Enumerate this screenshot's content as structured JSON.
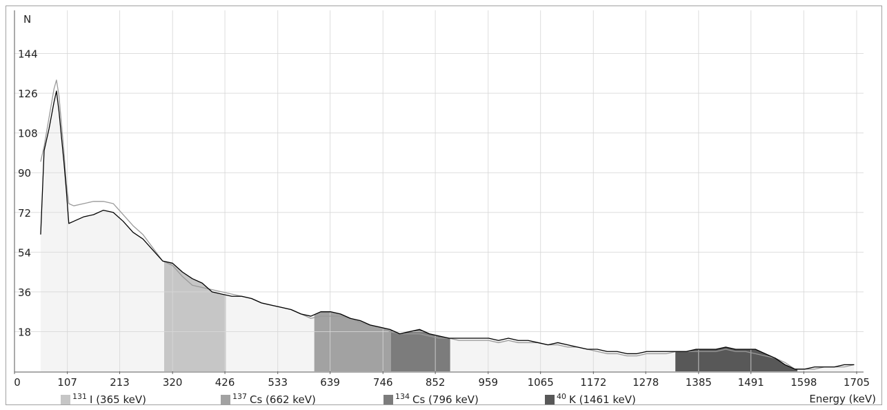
{
  "chart_data": {
    "type": "line",
    "y_label": "N",
    "x_label": "Energy (keV)",
    "xlim": [
      0,
      1705
    ],
    "ylim": [
      0,
      162
    ],
    "xticks": [
      0,
      107,
      213,
      320,
      426,
      533,
      639,
      746,
      852,
      959,
      1065,
      1172,
      1278,
      1385,
      1491,
      1598,
      1705
    ],
    "yticks": [
      18,
      36,
      54,
      72,
      90,
      108,
      126,
      144
    ],
    "grid": true,
    "fill_color": "#f4f4f4",
    "x": [
      53,
      60,
      70,
      80,
      85,
      90,
      100,
      105,
      110,
      120,
      140,
      160,
      180,
      200,
      220,
      240,
      260,
      280,
      300,
      320,
      340,
      360,
      380,
      400,
      420,
      440,
      460,
      480,
      500,
      520,
      540,
      560,
      580,
      600,
      620,
      640,
      660,
      680,
      700,
      720,
      740,
      760,
      780,
      800,
      820,
      840,
      860,
      880,
      900,
      920,
      940,
      960,
      980,
      1000,
      1020,
      1040,
      1060,
      1080,
      1100,
      1120,
      1140,
      1160,
      1180,
      1200,
      1220,
      1240,
      1260,
      1280,
      1300,
      1320,
      1340,
      1360,
      1380,
      1400,
      1420,
      1440,
      1460,
      1480,
      1500,
      1520,
      1540,
      1560,
      1580,
      1600,
      1620,
      1640,
      1660,
      1680,
      1700
    ],
    "series": [
      {
        "color": "#9a9a9a",
        "values": [
          95,
          102,
          115,
          128,
          132,
          125,
          100,
          85,
          76,
          75,
          76,
          77,
          77,
          76,
          71,
          66,
          62,
          56,
          50,
          48,
          43,
          39,
          38,
          37,
          36,
          35,
          34,
          33,
          31,
          30,
          29,
          28,
          26,
          24,
          25,
          25,
          25,
          24,
          22,
          21,
          20,
          18,
          17,
          17,
          17,
          16,
          15,
          15,
          14,
          14,
          14,
          14,
          13,
          14,
          13,
          13,
          13,
          12,
          12,
          11,
          11,
          10,
          9,
          8,
          8,
          7,
          7,
          8,
          8,
          8,
          9,
          9,
          9,
          9,
          9,
          10,
          9,
          9,
          8,
          7,
          6,
          4,
          1,
          1,
          1,
          2,
          2,
          2,
          3
        ]
      },
      {
        "color": "#000000",
        "values": [
          62,
          100,
          110,
          122,
          127,
          118,
          95,
          82,
          67,
          68,
          70,
          71,
          73,
          72,
          68,
          63,
          60,
          55,
          50,
          49,
          45,
          42,
          40,
          36,
          35,
          34,
          34,
          33,
          31,
          30,
          29,
          28,
          26,
          25,
          27,
          27,
          26,
          24,
          23,
          21,
          20,
          19,
          17,
          18,
          19,
          17,
          16,
          15,
          15,
          15,
          15,
          15,
          14,
          15,
          14,
          14,
          13,
          12,
          13,
          12,
          11,
          10,
          10,
          9,
          9,
          8,
          8,
          9,
          9,
          9,
          9,
          9,
          10,
          10,
          10,
          11,
          10,
          10,
          10,
          8,
          6,
          3,
          1,
          1,
          2,
          2,
          2,
          3,
          3
        ]
      }
    ],
    "regions": [
      {
        "mass": "131",
        "label": "I (365 keV)",
        "color": "#c6c6c6",
        "range": [
          303,
          428
        ]
      },
      {
        "mass": "137",
        "label": "Cs (662 keV)",
        "color": "#a2a2a2",
        "range": [
          607,
          762
        ]
      },
      {
        "mass": "134",
        "label": "Cs (796 keV)",
        "color": "#7c7c7c",
        "range": [
          762,
          882
        ]
      },
      {
        "mass": "40",
        "label": "K (1461 keV)",
        "color": "#585858",
        "range": [
          1338,
          1585
        ]
      }
    ]
  }
}
